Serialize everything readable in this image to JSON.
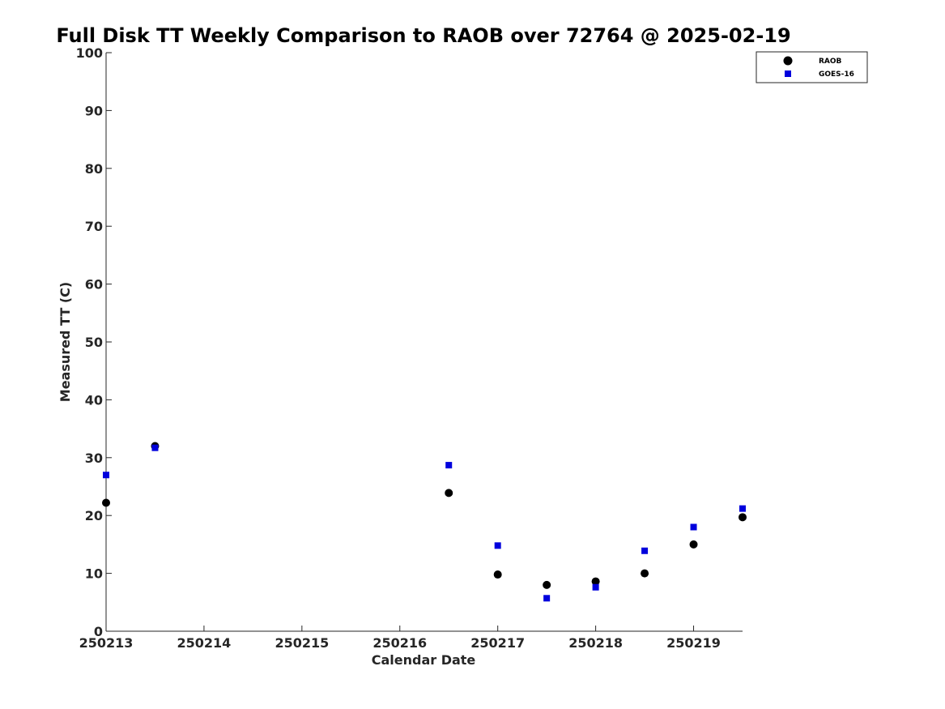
{
  "chart_data": {
    "type": "scatter",
    "title": "Full Disk TT Weekly Comparison to RAOB over 72764 @ 2025-02-19",
    "xlabel": "Calendar Date",
    "ylabel": "Measured TT (C)",
    "xlim": [
      0,
      6.5
    ],
    "ylim": [
      0,
      100
    ],
    "x_ticks": [
      {
        "value": 0,
        "label": "250213"
      },
      {
        "value": 1,
        "label": "250214"
      },
      {
        "value": 2,
        "label": "250215"
      },
      {
        "value": 3,
        "label": "250216"
      },
      {
        "value": 4,
        "label": "250217"
      },
      {
        "value": 5,
        "label": "250218"
      },
      {
        "value": 6,
        "label": "250219"
      }
    ],
    "y_ticks": [
      {
        "value": 0,
        "label": "0"
      },
      {
        "value": 10,
        "label": "10"
      },
      {
        "value": 20,
        "label": "20"
      },
      {
        "value": 30,
        "label": "30"
      },
      {
        "value": 40,
        "label": "40"
      },
      {
        "value": 50,
        "label": "50"
      },
      {
        "value": 60,
        "label": "60"
      },
      {
        "value": 70,
        "label": "70"
      },
      {
        "value": 80,
        "label": "80"
      },
      {
        "value": 90,
        "label": "90"
      },
      {
        "value": 100,
        "label": "100"
      }
    ],
    "grid": false,
    "legend_position": "top-right",
    "series": [
      {
        "name": "RAOB",
        "marker": "circle",
        "color": "#000000",
        "points": [
          {
            "x": 0,
            "y": 22.2
          },
          {
            "x": 0.5,
            "y": 32.0
          },
          {
            "x": 3.5,
            "y": 23.9
          },
          {
            "x": 4,
            "y": 9.8
          },
          {
            "x": 4.5,
            "y": 8.0
          },
          {
            "x": 5,
            "y": 8.6
          },
          {
            "x": 5.5,
            "y": 10.0
          },
          {
            "x": 6,
            "y": 15.0
          },
          {
            "x": 6.5,
            "y": 19.7
          }
        ]
      },
      {
        "name": "GOES-16",
        "marker": "square",
        "color": "#0000dd",
        "points": [
          {
            "x": 0,
            "y": 27.0
          },
          {
            "x": 0.5,
            "y": 31.7
          },
          {
            "x": 3.5,
            "y": 28.7
          },
          {
            "x": 4,
            "y": 14.8
          },
          {
            "x": 4.5,
            "y": 5.7
          },
          {
            "x": 5,
            "y": 7.6
          },
          {
            "x": 5.5,
            "y": 13.9
          },
          {
            "x": 6,
            "y": 18.0
          },
          {
            "x": 6.5,
            "y": 21.2
          }
        ]
      }
    ]
  }
}
